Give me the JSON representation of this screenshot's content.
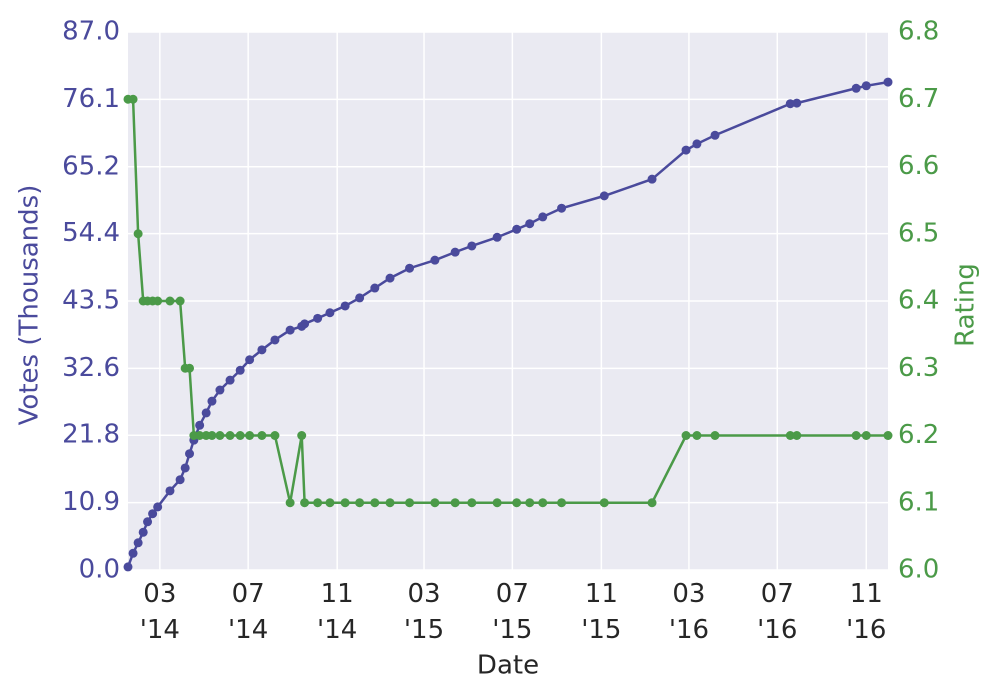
{
  "chart_data": {
    "type": "line",
    "x_label": "Date",
    "y_label": "Votes (Thousands)",
    "y2_label": "Rating",
    "x": [
      "2014-01-16",
      "2014-01-23",
      "2014-01-30",
      "2014-02-06",
      "2014-02-12",
      "2014-02-19",
      "2014-02-26",
      "2014-03-15",
      "2014-03-29",
      "2014-04-05",
      "2014-04-11",
      "2014-04-17",
      "2014-04-25",
      "2014-05-04",
      "2014-05-12",
      "2014-05-23",
      "2014-06-06",
      "2014-06-20",
      "2014-07-03",
      "2014-07-20",
      "2014-08-07",
      "2014-08-28",
      "2014-09-13",
      "2014-09-17",
      "2014-10-05",
      "2014-10-22",
      "2014-11-12",
      "2014-12-02",
      "2014-12-23",
      "2015-01-13",
      "2015-02-09",
      "2015-03-16",
      "2015-04-13",
      "2015-05-06",
      "2015-06-10",
      "2015-07-07",
      "2015-07-25",
      "2015-08-12",
      "2015-09-07",
      "2015-11-05",
      "2016-01-10",
      "2016-02-26",
      "2016-03-12",
      "2016-04-06",
      "2016-07-19",
      "2016-07-28",
      "2016-10-18",
      "2016-11-01",
      "2016-12-01"
    ],
    "series": [
      {
        "color": "#4a4a9c",
        "values": [
          0.5,
          2.7,
          4.4,
          6.1,
          7.8,
          9.1,
          10.2,
          12.8,
          14.6,
          16.5,
          18.8,
          21.0,
          23.4,
          25.4,
          27.3,
          29.1,
          30.7,
          32.3,
          34.0,
          35.6,
          37.2,
          38.8,
          39.4,
          39.8,
          40.7,
          41.6,
          42.7,
          44.0,
          45.6,
          47.2,
          48.8,
          50.1,
          51.4,
          52.4,
          53.8,
          55.1,
          56.0,
          57.1,
          58.5,
          60.5,
          63.2,
          67.9,
          68.9,
          70.3,
          75.4,
          75.5,
          77.9,
          78.3,
          78.9
        ]
      },
      {
        "color": "#4b9a48",
        "axis": "y2",
        "values": [
          6.7,
          6.7,
          6.5,
          6.4,
          6.4,
          6.4,
          6.4,
          6.4,
          6.4,
          6.3,
          6.3,
          6.2,
          6.2,
          6.2,
          6.2,
          6.2,
          6.2,
          6.2,
          6.2,
          6.2,
          6.2,
          6.1,
          6.2,
          6.1,
          6.1,
          6.1,
          6.1,
          6.1,
          6.1,
          6.1,
          6.1,
          6.1,
          6.1,
          6.1,
          6.1,
          6.1,
          6.1,
          6.1,
          6.1,
          6.1,
          6.1,
          6.2,
          6.2,
          6.2,
          6.2,
          6.2,
          6.2,
          6.2,
          6.2
        ]
      }
    ],
    "xlim": [
      "2014-01-16",
      "2016-12-01"
    ],
    "xticks": [
      {
        "value": "2014-03-01",
        "label": "03\n'14"
      },
      {
        "value": "2014-07-01",
        "label": "07\n'14"
      },
      {
        "value": "2014-11-01",
        "label": "11\n'14"
      },
      {
        "value": "2015-03-01",
        "label": "03\n'15"
      },
      {
        "value": "2015-07-01",
        "label": "07\n'15"
      },
      {
        "value": "2015-11-01",
        "label": "11\n'15"
      },
      {
        "value": "2016-03-01",
        "label": "03\n'16"
      },
      {
        "value": "2016-07-01",
        "label": "07\n'16"
      },
      {
        "value": "2016-11-01",
        "label": "11\n'16"
      }
    ],
    "ylim": [
      0,
      87
    ],
    "yticks": [
      {
        "value": 0,
        "label": "0.0"
      },
      10.9,
      21.8,
      32.6,
      43.5,
      54.4,
      65.2,
      76.1,
      {
        "value": 87,
        "label": "87.0"
      }
    ],
    "y2lim": [
      6.0,
      6.8
    ],
    "y2ticks": [
      {
        "value": 6,
        "label": "6.0"
      },
      6.1,
      6.2,
      6.3,
      6.4,
      6.5,
      6.6,
      6.7,
      6.8
    ],
    "grid": true
  }
}
